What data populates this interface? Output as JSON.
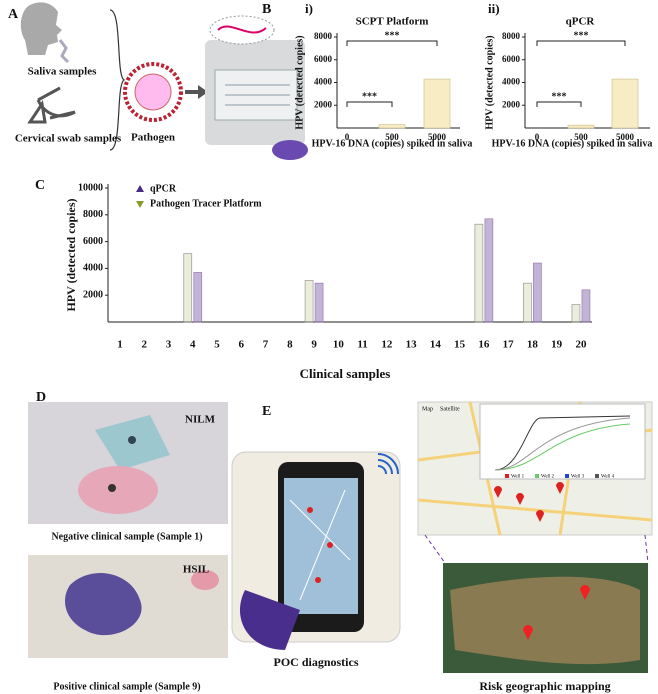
{
  "panels": [
    "A",
    "B",
    "C",
    "D",
    "E"
  ],
  "panel_a": {
    "saliva": "Saliva samples",
    "swab": "Cervical swab samples",
    "pathogen": "Pathogen"
  },
  "chart_data": [
    {
      "type": "bar",
      "label": "i)",
      "title": "SCPT Platform",
      "categories": [
        "0",
        "500",
        "5000"
      ],
      "values": [
        0,
        300,
        4300
      ],
      "color": "#f7ecc4",
      "ylim": [
        0,
        8000
      ],
      "yticks": [
        2000,
        4000,
        6000,
        8000
      ],
      "y_label": "HPV (detected copies)",
      "x_label": "HPV-16 DNA  (copies) spiked in saliva",
      "annotations": [
        "***",
        "***"
      ]
    },
    {
      "type": "bar",
      "label": "ii)",
      "title": "qPCR",
      "categories": [
        "0",
        "500",
        "5000"
      ],
      "values": [
        0,
        250,
        4300
      ],
      "color": "#f7ecc4",
      "ylim": [
        0,
        8000
      ],
      "yticks": [
        2000,
        4000,
        6000,
        8000
      ],
      "y_label": "HPV (detected copies)",
      "x_label": "HPV-16 DNA  (copies) spiked in saliva",
      "annotations": [
        "***",
        "***"
      ]
    },
    {
      "type": "grouped_bar",
      "categories": [
        "1",
        "2",
        "3",
        "4",
        "5",
        "6",
        "7",
        "8",
        "9",
        "10",
        "11",
        "12",
        "13",
        "14",
        "15",
        "16",
        "17",
        "18",
        "19",
        "20"
      ],
      "series": [
        {
          "name": "qPCR",
          "color": "#4b2a86",
          "values": [
            0,
            0,
            0,
            3700,
            0,
            0,
            0,
            0,
            2900,
            0,
            0,
            0,
            0,
            0,
            0,
            7700,
            0,
            4400,
            0,
            2400
          ]
        },
        {
          "name": "Pathogen Tracer Platform",
          "color": "#8a9a2a",
          "values": [
            0,
            0,
            0,
            5100,
            0,
            0,
            0,
            0,
            3100,
            0,
            0,
            0,
            0,
            0,
            0,
            7300,
            0,
            2900,
            0,
            1300
          ]
        }
      ],
      "ylim": [
        0,
        10000
      ],
      "yticks": [
        2000,
        4000,
        6000,
        8000,
        10000
      ],
      "y_label": "HPV (detected copies)",
      "x_label": "Clinical samples",
      "legend": "top-left"
    }
  ],
  "panel_d": {
    "top_tag": "NILM",
    "top_caption": "Negative clinical sample (Sample 1)",
    "bottom_tag": "HSIL",
    "bottom_caption": "Positive clinical sample (Sample 9)"
  },
  "panel_e": {
    "device_caption": "POC diagnostics",
    "map_caption": "Risk geographic mapping",
    "map_tab": "Map",
    "satellite_tab": "Satellite",
    "wells": [
      "Well 1",
      "Well 2",
      "Well 3",
      "Well 4"
    ]
  }
}
